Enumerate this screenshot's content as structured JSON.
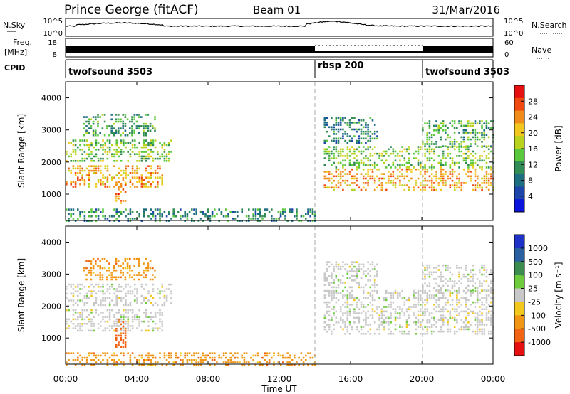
{
  "header": {
    "station": "Prince George (fitACF)",
    "beam": "Beam 01",
    "date": "31/Mar/2016"
  },
  "noise_panel": {
    "left_label": "N.Sky",
    "left_ticks": [
      "10^5",
      "10^0"
    ],
    "right_ticks": [
      "10^5",
      "10^0"
    ],
    "right_label": "N.Search"
  },
  "freq_panel": {
    "left_label_1": "Freq.",
    "left_label_2": "[MHz]",
    "left_ticks": [
      "18",
      "8"
    ],
    "right_ticks": [
      "60",
      "0"
    ],
    "right_label": "Nave"
  },
  "cpid_panel": {
    "label": "CPID",
    "programs": [
      {
        "name": "twofsound 3503",
        "start_hour": 0,
        "end_hour": 14
      },
      {
        "name": "rbsp 200",
        "start_hour": 14,
        "end_hour": 20
      },
      {
        "name": "twofsound 3503",
        "start_hour": 20,
        "end_hour": 24
      }
    ]
  },
  "power_colorbar": {
    "label": "Power [dB]",
    "ticks": [
      "28",
      "24",
      "20",
      "16",
      "12",
      "8",
      "4"
    ],
    "colors": [
      "#e61010",
      "#f04a10",
      "#f08c1a",
      "#f2c81e",
      "#b8d21e",
      "#5ac83c",
      "#328c55",
      "#1e6e82",
      "#1e46aa",
      "#0a14dc"
    ]
  },
  "velocity_colorbar": {
    "label": "Velocity [m s⁻¹]",
    "ticks": [
      "1000",
      "500",
      "100",
      "25",
      "-25",
      "-100",
      "-500",
      "-1000"
    ],
    "colors": [
      "#1e32c8",
      "#2860a0",
      "#3c8c50",
      "#6ecc3c",
      "#c8c8c8",
      "#f2c81e",
      "#f09614",
      "#f06414",
      "#e61010"
    ]
  },
  "chart_data": [
    {
      "type": "heatmap",
      "name": "power",
      "xlabel": "Time UT",
      "ylabel": "Slant Range [km]",
      "x_ticks": [
        "00:00",
        "04:00",
        "08:00",
        "12:00",
        "16:00",
        "20:00",
        "00:00"
      ],
      "x_range_hours": [
        0,
        24
      ],
      "y_ticks": [
        "1000",
        "2000",
        "3000",
        "4000"
      ],
      "y_range_km": [
        180,
        4500
      ],
      "scale_range_db": [
        0,
        30
      ],
      "regions": [
        {
          "t0": 0.0,
          "t1": 5.5,
          "r0": 1200,
          "r1": 1900,
          "value": 22
        },
        {
          "t0": 2.8,
          "t1": 3.4,
          "r0": 700,
          "r1": 1600,
          "value": 24
        },
        {
          "t0": 0.0,
          "t1": 6.0,
          "r0": 2000,
          "r1": 2700,
          "value": 14
        },
        {
          "t0": 1.0,
          "t1": 5.0,
          "r0": 2800,
          "r1": 3500,
          "value": 11
        },
        {
          "t0": 0.0,
          "t1": 14.0,
          "r0": 180,
          "r1": 550,
          "value": 9
        },
        {
          "t0": 14.5,
          "t1": 24.0,
          "r0": 1100,
          "r1": 1800,
          "value": 22
        },
        {
          "t0": 14.5,
          "t1": 24.0,
          "r0": 1850,
          "r1": 2500,
          "value": 14
        },
        {
          "t0": 14.5,
          "t1": 17.5,
          "r0": 2600,
          "r1": 3400,
          "value": 8
        },
        {
          "t0": 20.0,
          "t1": 24.0,
          "r0": 2500,
          "r1": 3300,
          "value": 12
        }
      ]
    },
    {
      "type": "heatmap",
      "name": "velocity",
      "xlabel": "Time UT",
      "ylabel": "Slant Range [km]",
      "x_ticks": [
        "00:00",
        "04:00",
        "08:00",
        "12:00",
        "16:00",
        "20:00",
        "00:00"
      ],
      "x_range_hours": [
        0,
        24
      ],
      "y_ticks": [
        "1000",
        "2000",
        "3000",
        "4000"
      ],
      "y_range_km": [
        180,
        4500
      ],
      "regions": [
        {
          "t0": 0.0,
          "t1": 5.5,
          "r0": 1200,
          "r1": 1900,
          "value": 0
        },
        {
          "t0": 2.8,
          "t1": 3.4,
          "r0": 700,
          "r1": 1600,
          "value": -500
        },
        {
          "t0": 0.0,
          "t1": 6.0,
          "r0": 2000,
          "r1": 2700,
          "value": 0
        },
        {
          "t0": 1.0,
          "t1": 5.0,
          "r0": 2800,
          "r1": 3500,
          "value": -100
        },
        {
          "t0": 0.0,
          "t1": 14.0,
          "r0": 180,
          "r1": 550,
          "value": -100
        },
        {
          "t0": 14.5,
          "t1": 24.0,
          "r0": 1100,
          "r1": 1800,
          "value": 0
        },
        {
          "t0": 14.5,
          "t1": 24.0,
          "r0": 1850,
          "r1": 2500,
          "value": 0
        },
        {
          "t0": 14.5,
          "t1": 17.5,
          "r0": 2600,
          "r1": 3400,
          "value": 0
        },
        {
          "t0": 20.0,
          "t1": 24.0,
          "r0": 2500,
          "r1": 3300,
          "value": 0
        }
      ]
    }
  ]
}
